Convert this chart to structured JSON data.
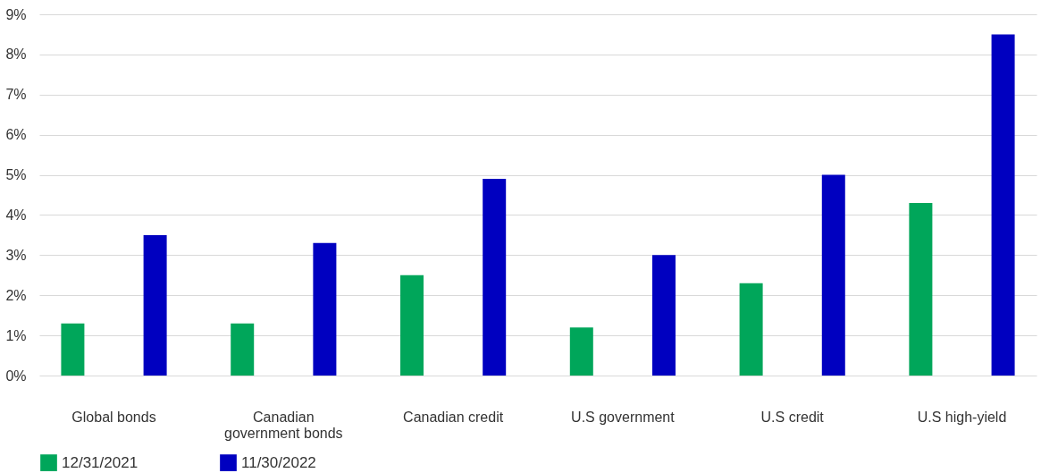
{
  "chart_data": {
    "type": "bar",
    "categories": [
      "Global bonds",
      "Canadian government bonds",
      "Canadian credit",
      "U.S government",
      "U.S credit",
      "U.S high-yield"
    ],
    "series": [
      {
        "name": "12/31/2021",
        "color": "#00a65a",
        "values": [
          1.3,
          1.3,
          2.5,
          1.2,
          2.3,
          4.3
        ]
      },
      {
        "name": "11/30/2022",
        "color": "#0000c0",
        "values": [
          3.5,
          3.3,
          4.9,
          3.0,
          5.0,
          8.5
        ]
      }
    ],
    "ylim": [
      0,
      9
    ],
    "yticks": [
      {
        "value": 0,
        "label": "0%"
      },
      {
        "value": 1,
        "label": "1%"
      },
      {
        "value": 2,
        "label": "2%"
      },
      {
        "value": 3,
        "label": "3%"
      },
      {
        "value": 4,
        "label": "4%"
      },
      {
        "value": 5,
        "label": "5%"
      },
      {
        "value": 6,
        "label": "6%"
      },
      {
        "value": 7,
        "label": "7%"
      },
      {
        "value": 8,
        "label": "8%"
      },
      {
        "value": 9,
        "label": "9%"
      }
    ],
    "grid": "y",
    "legend": "bottom left"
  }
}
